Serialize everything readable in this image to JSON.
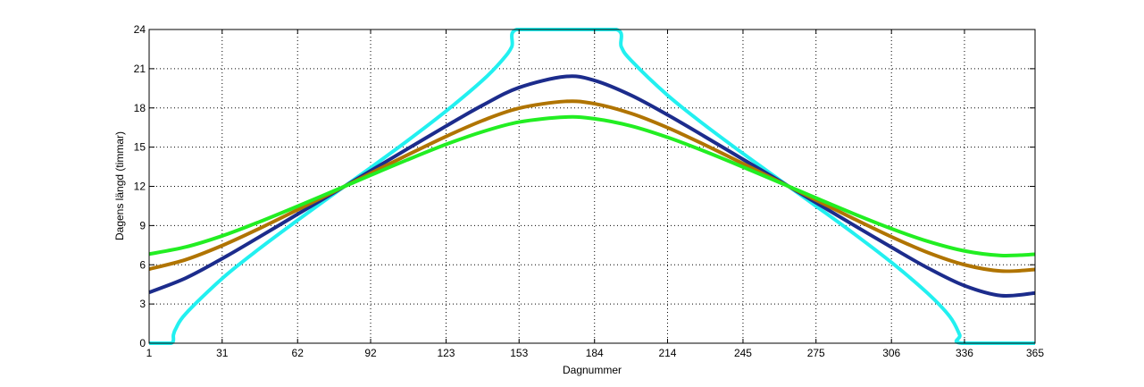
{
  "chart_data": {
    "type": "line",
    "title": "",
    "xlabel": "Dagnummer",
    "ylabel": "Dagens längd (timmar)",
    "xlim": [
      1,
      365
    ],
    "ylim": [
      0,
      24
    ],
    "xticks": [
      1,
      31,
      62,
      92,
      123,
      153,
      184,
      214,
      245,
      275,
      306,
      336,
      365
    ],
    "yticks": [
      0,
      3,
      6,
      9,
      12,
      15,
      18,
      21,
      24
    ],
    "grid": true,
    "series": [
      {
        "name": "cyan",
        "color": "#22f0f0",
        "x": [
          1,
          10,
          11,
          12,
          16,
          31,
          46,
          62,
          77,
          92,
          107,
          123,
          138,
          146,
          150,
          152,
          172,
          193,
          195,
          199,
          214,
          229,
          245,
          260,
          275,
          290,
          306,
          321,
          330,
          334,
          335,
          365
        ],
        "y": [
          0,
          0,
          0.65,
          1.13,
          2.25,
          4.95,
          7.19,
          9.41,
          11.43,
          13.43,
          15.47,
          17.76,
          20.11,
          21.64,
          22.68,
          24,
          24,
          24,
          22.68,
          21.64,
          18.97,
          16.73,
          14.51,
          12.5,
          10.49,
          8.46,
          6.18,
          3.8,
          2.03,
          0.65,
          0,
          0
        ]
      },
      {
        "name": "navy",
        "color": "#1c2c8c",
        "x": [
          1,
          16,
          31,
          46,
          62,
          77,
          92,
          107,
          123,
          138,
          153,
          172,
          184,
          199,
          214,
          229,
          245,
          260,
          275,
          290,
          306,
          321,
          336,
          351,
          365
        ],
        "y": [
          3.89,
          4.98,
          6.47,
          8.1,
          9.87,
          11.53,
          13.19,
          14.85,
          16.61,
          18.2,
          19.56,
          20.4,
          20.1,
          18.97,
          17.47,
          15.84,
          14.07,
          12.42,
          10.75,
          9.09,
          7.34,
          5.75,
          4.4,
          3.64,
          3.84
        ]
      },
      {
        "name": "brown",
        "color": "#b07400",
        "x": [
          1,
          16,
          31,
          46,
          62,
          77,
          92,
          107,
          123,
          138,
          153,
          172,
          184,
          199,
          214,
          229,
          245,
          260,
          275,
          290,
          306,
          321,
          336,
          351,
          365
        ],
        "y": [
          5.67,
          6.39,
          7.47,
          8.75,
          10.21,
          11.6,
          13.0,
          14.39,
          15.82,
          17.03,
          17.98,
          18.5,
          18.32,
          17.58,
          16.49,
          15.2,
          13.74,
          12.35,
          10.95,
          9.57,
          8.14,
          6.93,
          6.0,
          5.52,
          5.64
        ]
      },
      {
        "name": "green",
        "color": "#22ee22",
        "x": [
          1,
          16,
          31,
          46,
          62,
          77,
          92,
          107,
          123,
          138,
          153,
          172,
          184,
          199,
          214,
          229,
          245,
          260,
          275,
          290,
          306,
          321,
          336,
          351,
          365
        ],
        "y": [
          6.82,
          7.36,
          8.21,
          9.26,
          10.48,
          11.66,
          12.85,
          14.02,
          15.21,
          16.18,
          16.92,
          17.3,
          17.17,
          16.62,
          15.75,
          14.7,
          13.48,
          12.3,
          11.11,
          9.94,
          8.76,
          7.79,
          7.06,
          6.71,
          6.8
        ]
      }
    ]
  }
}
